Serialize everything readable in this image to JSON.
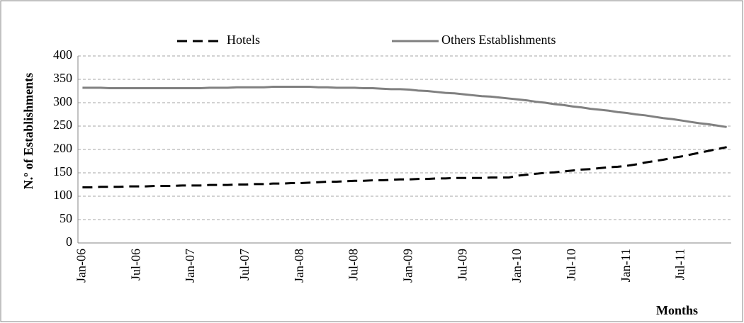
{
  "chart_data": {
    "type": "line",
    "y_label": "N.º of Establishments",
    "x_label": "Months",
    "categories": [
      "Jan-06",
      null,
      null,
      null,
      null,
      null,
      "Jul-06",
      null,
      null,
      null,
      null,
      null,
      "Jan-07",
      null,
      null,
      null,
      null,
      null,
      "Jul-07",
      null,
      null,
      null,
      null,
      null,
      "Jan-08",
      null,
      null,
      null,
      null,
      null,
      "Jul-08",
      null,
      null,
      null,
      null,
      null,
      "Jan-09",
      null,
      null,
      null,
      null,
      null,
      "Jul-09",
      null,
      null,
      null,
      null,
      null,
      "Jan-10",
      null,
      null,
      null,
      null,
      null,
      "Jul-10",
      null,
      null,
      null,
      null,
      null,
      "Jan-11",
      null,
      null,
      null,
      null,
      null,
      "Jul-11",
      null,
      null,
      null,
      null,
      null
    ],
    "series": [
      {
        "name": "Hotels",
        "color": "#000000",
        "line_style": "dashed",
        "values": [
          119,
          119,
          120,
          120,
          120,
          121,
          121,
          121,
          122,
          122,
          122,
          123,
          123,
          123,
          124,
          124,
          124,
          125,
          125,
          126,
          126,
          127,
          127,
          128,
          128,
          129,
          130,
          131,
          131,
          132,
          133,
          133,
          134,
          134,
          135,
          136,
          136,
          137,
          137,
          138,
          138,
          139,
          139,
          139,
          139,
          140,
          140,
          140,
          144,
          146,
          148,
          150,
          151,
          153,
          155,
          157,
          158,
          160,
          162,
          163,
          165,
          168,
          172,
          175,
          178,
          182,
          185,
          189,
          193,
          197,
          201,
          205
        ]
      },
      {
        "name": "Others Establishments",
        "color": "#808080",
        "line_style": "solid",
        "values": [
          332,
          332,
          332,
          331,
          331,
          331,
          331,
          331,
          331,
          331,
          331,
          331,
          331,
          331,
          332,
          332,
          332,
          333,
          333,
          333,
          333,
          334,
          334,
          334,
          334,
          334,
          333,
          333,
          332,
          332,
          332,
          331,
          331,
          330,
          329,
          329,
          328,
          326,
          325,
          323,
          321,
          320,
          318,
          316,
          314,
          313,
          311,
          309,
          307,
          305,
          302,
          300,
          297,
          295,
          292,
          290,
          287,
          285,
          283,
          280,
          278,
          275,
          273,
          270,
          267,
          265,
          262,
          259,
          256,
          254,
          251,
          248
        ]
      }
    ],
    "ylim": [
      0,
      400
    ],
    "yticks": [
      0,
      50,
      100,
      150,
      200,
      250,
      300,
      350,
      400
    ],
    "grid": true,
    "legend": "top"
  }
}
